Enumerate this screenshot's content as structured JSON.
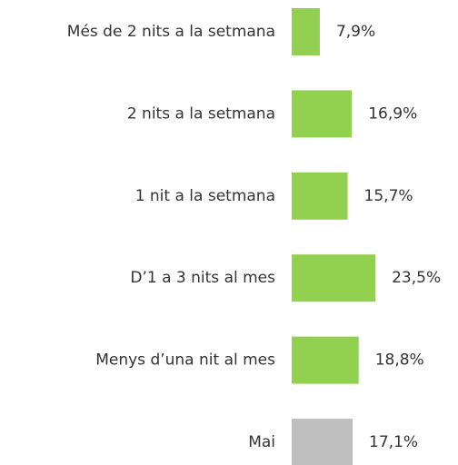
{
  "chart_data": {
    "type": "hbar",
    "categories": [
      "Més de 2 nits a la setmana",
      "2 nits a la setmana",
      "1 nit a la setmana",
      "D’1 a 3 nits al mes",
      "Menys d’una nit al mes",
      "Mai"
    ],
    "values": [
      7.9,
      16.9,
      15.7,
      23.5,
      18.8,
      17.1
    ],
    "value_labels": [
      "7,9%",
      "16,9%",
      "15,7%",
      "23,5%",
      "18,8%",
      "17,1%"
    ],
    "colors": [
      "#92d050",
      "#92d050",
      "#92d050",
      "#92d050",
      "#92d050",
      "#bfbfbf"
    ]
  }
}
